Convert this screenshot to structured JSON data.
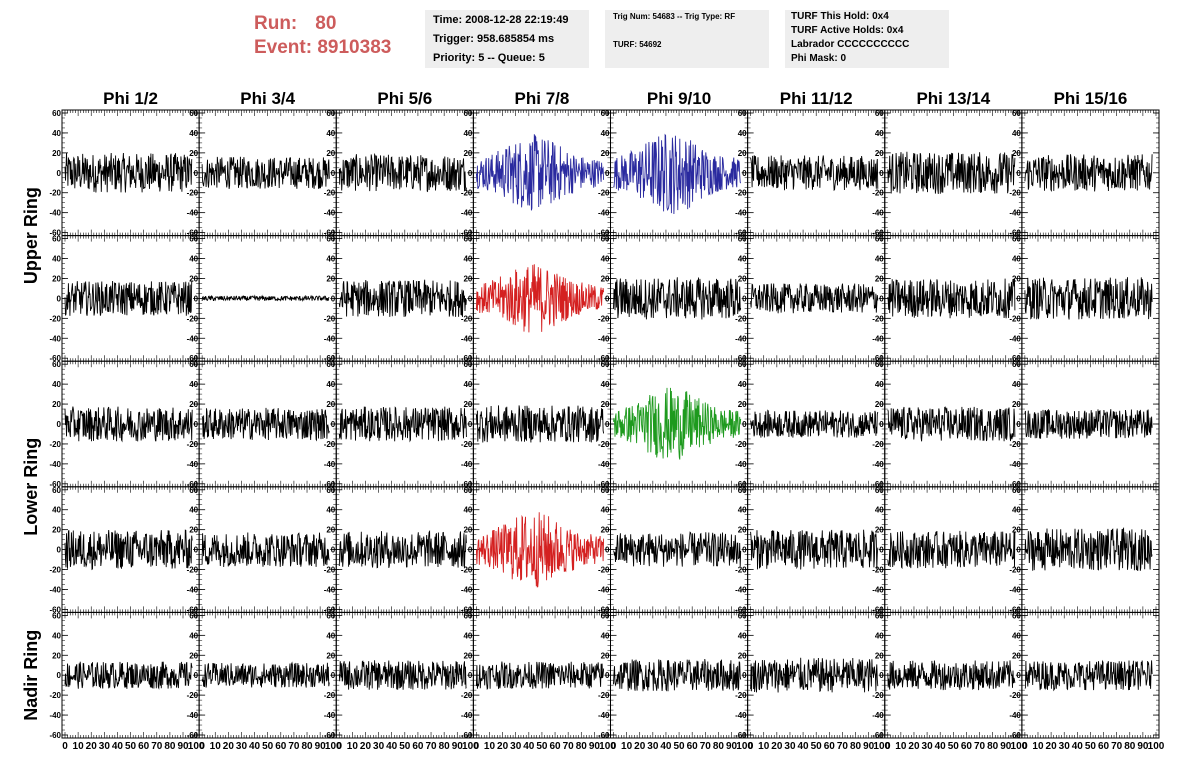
{
  "header": {
    "run_label": "Run:",
    "run_value": "80",
    "event_label": "Event:",
    "event_value": "8910383",
    "info1": [
      "Time: 2008-12-28 22:19:49",
      "Trigger: 958.685854 ms",
      "Priority: 5 -- Queue: 5"
    ],
    "info2": [
      "Trig Num: 54683 -- Trig Type: RF",
      "TURF: 54692"
    ],
    "info3": [
      "TURF This Hold: 0x4",
      "TURF Active Holds: 0x4",
      "Labrador CCCCCCCCCC",
      "Phi Mask: 0"
    ]
  },
  "chart_data": {
    "type": "line",
    "columns": [
      "Phi 1/2",
      "Phi 3/4",
      "Phi 5/6",
      "Phi 7/8",
      "Phi 9/10",
      "Phi 11/12",
      "Phi 13/14",
      "Phi 15/16"
    ],
    "ring_labels": [
      {
        "label": "Upper Ring",
        "rows": [
          0,
          1
        ]
      },
      {
        "label": "Lower Ring",
        "rows": [
          2,
          3
        ]
      },
      {
        "label": "Nadir Ring",
        "rows": [
          4
        ]
      }
    ],
    "ylim": [
      -60,
      60
    ],
    "y_ticks": [
      "60",
      "40",
      "20",
      "0",
      "-20",
      "-40",
      "-60"
    ],
    "xlim": [
      0,
      100
    ],
    "x_ticks": [
      "0",
      "10",
      "20",
      "30",
      "40",
      "50",
      "60",
      "70",
      "80",
      "90",
      "100"
    ],
    "samples": 260,
    "x_span": 97,
    "colors": {
      "default": "#000000",
      "blue": "#2a2a9f",
      "red": "#d42020",
      "green": "#1e9a1e"
    },
    "panels": [
      [
        {
          "amp": 16,
          "color": "default"
        },
        {
          "amp": 13,
          "color": "default"
        },
        {
          "amp": 15,
          "color": "default"
        },
        {
          "amp": 24,
          "color": "blue",
          "burst": true
        },
        {
          "amp": 26,
          "color": "blue",
          "burst": true
        },
        {
          "amp": 14,
          "color": "default"
        },
        {
          "amp": 17,
          "color": "default"
        },
        {
          "amp": 15,
          "color": "default"
        }
      ],
      [
        {
          "amp": 14,
          "color": "default"
        },
        {
          "amp": 2,
          "color": "default"
        },
        {
          "amp": 15,
          "color": "default"
        },
        {
          "amp": 22,
          "color": "red",
          "burst": true
        },
        {
          "amp": 17,
          "color": "default"
        },
        {
          "amp": 12,
          "color": "default"
        },
        {
          "amp": 16,
          "color": "default"
        },
        {
          "amp": 17,
          "color": "default"
        }
      ],
      [
        {
          "amp": 14,
          "color": "default"
        },
        {
          "amp": 13,
          "color": "default"
        },
        {
          "amp": 14,
          "color": "default"
        },
        {
          "amp": 15,
          "color": "default"
        },
        {
          "amp": 23,
          "color": "green",
          "burst": true
        },
        {
          "amp": 11,
          "color": "default"
        },
        {
          "amp": 14,
          "color": "default"
        },
        {
          "amp": 12,
          "color": "default"
        }
      ],
      [
        {
          "amp": 16,
          "color": "default"
        },
        {
          "amp": 14,
          "color": "default"
        },
        {
          "amp": 15,
          "color": "default"
        },
        {
          "amp": 24,
          "color": "red",
          "burst": true
        },
        {
          "amp": 14,
          "color": "default"
        },
        {
          "amp": 16,
          "color": "default"
        },
        {
          "amp": 15,
          "color": "default"
        },
        {
          "amp": 17,
          "color": "default"
        }
      ],
      [
        {
          "amp": 11,
          "color": "default"
        },
        {
          "amp": 10,
          "color": "default"
        },
        {
          "amp": 12,
          "color": "default"
        },
        {
          "amp": 11,
          "color": "default"
        },
        {
          "amp": 13,
          "color": "default"
        },
        {
          "amp": 14,
          "color": "default"
        },
        {
          "amp": 12,
          "color": "default"
        },
        {
          "amp": 12,
          "color": "default"
        }
      ]
    ]
  }
}
